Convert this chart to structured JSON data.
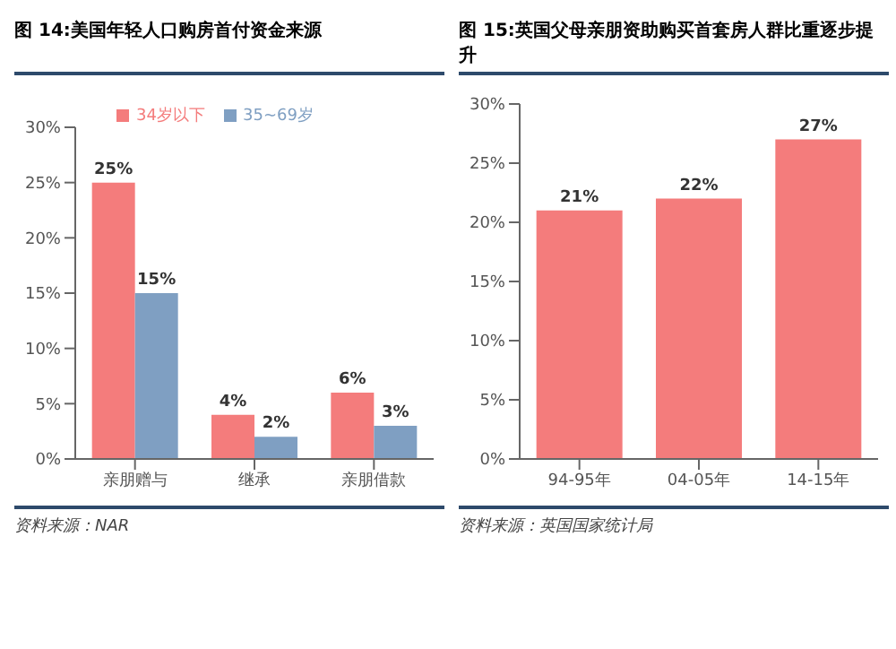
{
  "chart_data": [
    {
      "type": "bar",
      "title": "图 14:美国年轻人口购房首付资金来源",
      "categories": [
        "亲朋赠与",
        "继承",
        "亲朋借款"
      ],
      "series": [
        {
          "name": "34岁以下",
          "color": "#f47c7c",
          "values": [
            25,
            4,
            6
          ],
          "value_labels": [
            "25%",
            "4%",
            "6%"
          ]
        },
        {
          "name": "35~69岁",
          "color": "#7f9fc2",
          "values": [
            15,
            2,
            3
          ],
          "value_labels": [
            "15%",
            "2%",
            "3%"
          ]
        }
      ],
      "ylim": [
        0,
        30
      ],
      "yticks": [
        {
          "value": 0,
          "label": "0%"
        },
        {
          "value": 5,
          "label": "5%"
        },
        {
          "value": 10,
          "label": "10%"
        },
        {
          "value": 15,
          "label": "15%"
        },
        {
          "value": 20,
          "label": "20%"
        },
        {
          "value": 25,
          "label": "25%"
        },
        {
          "value": 30,
          "label": "30%"
        }
      ],
      "legend": "top",
      "annotations": [
        "资料来源：NAR"
      ]
    },
    {
      "type": "bar",
      "title": "图 15:英国父母亲朋资助购买首套房人群比重逐步提升",
      "categories": [
        "94-95年",
        "04-05年",
        "14-15年"
      ],
      "series": [
        {
          "color": "#f47c7c",
          "values": [
            21,
            22,
            27
          ],
          "value_labels": [
            "21%",
            "22%",
            "27%"
          ]
        }
      ],
      "ylim": [
        0,
        30
      ],
      "yticks": [
        {
          "value": 0,
          "label": "0%"
        },
        {
          "value": 5,
          "label": "5%"
        },
        {
          "value": 10,
          "label": "10%"
        },
        {
          "value": 15,
          "label": "15%"
        },
        {
          "value": 20,
          "label": "20%"
        },
        {
          "value": 25,
          "label": "25%"
        },
        {
          "value": 30,
          "label": "30%"
        }
      ],
      "annotations": [
        "资料来源：英国国家统计局"
      ]
    }
  ]
}
